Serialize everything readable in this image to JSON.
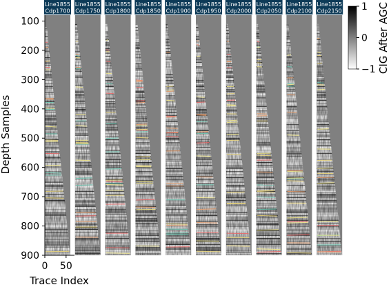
{
  "chart_data": {
    "type": "heatmap",
    "title": "",
    "xlabel": "Trace Index",
    "ylabel": "Depth Samples",
    "y_range": [
      80,
      900
    ],
    "y_ticks": [
      100,
      200,
      300,
      400,
      500,
      600,
      700,
      800,
      900
    ],
    "x_ticks": [
      0,
      50
    ],
    "x_range_per_panel": [
      0,
      60
    ],
    "colorbar": {
      "label": "CIG After AGC",
      "range": [
        -1,
        1
      ],
      "ticks": [
        1,
        0,
        -1
      ],
      "tick_labels": [
        "1",
        "0",
        "−1"
      ],
      "colormap": "greys"
    },
    "panels": [
      {
        "line": "Line1855",
        "cdp": "Cdp1700",
        "mute_start": 120,
        "mute_end": 900
      },
      {
        "line": "Line1855",
        "cdp": "Cdp1750",
        "mute_start": 110,
        "mute_end": 900
      },
      {
        "line": "Line1855",
        "cdp": "Cdp1800",
        "mute_start": 110,
        "mute_end": 900
      },
      {
        "line": "Line1855",
        "cdp": "Cdp1850",
        "mute_start": 110,
        "mute_end": 900
      },
      {
        "line": "Line1855",
        "cdp": "Cdp1900",
        "mute_start": 110,
        "mute_end": 900
      },
      {
        "line": "Line1855",
        "cdp": "Cdp1950",
        "mute_start": 110,
        "mute_end": 900
      },
      {
        "line": "Line1855",
        "cdp": "Cdp2000",
        "mute_start": 110,
        "mute_end": 900
      },
      {
        "line": "Line1855",
        "cdp": "Cdp2050",
        "mute_start": 110,
        "mute_end": 900
      },
      {
        "line": "Line1855",
        "cdp": "Cdp2100",
        "mute_start": 110,
        "mute_end": 900
      },
      {
        "line": "Line1855",
        "cdp": "Cdp2150",
        "mute_start": 110,
        "mute_end": 900
      }
    ],
    "horizon_colors": [
      "#e8a070",
      "#e7d37a",
      "#6ec8b4",
      "#e86a6a",
      "#f0e68c"
    ],
    "background_color": "#808080",
    "header_color": "#0d3a57"
  }
}
